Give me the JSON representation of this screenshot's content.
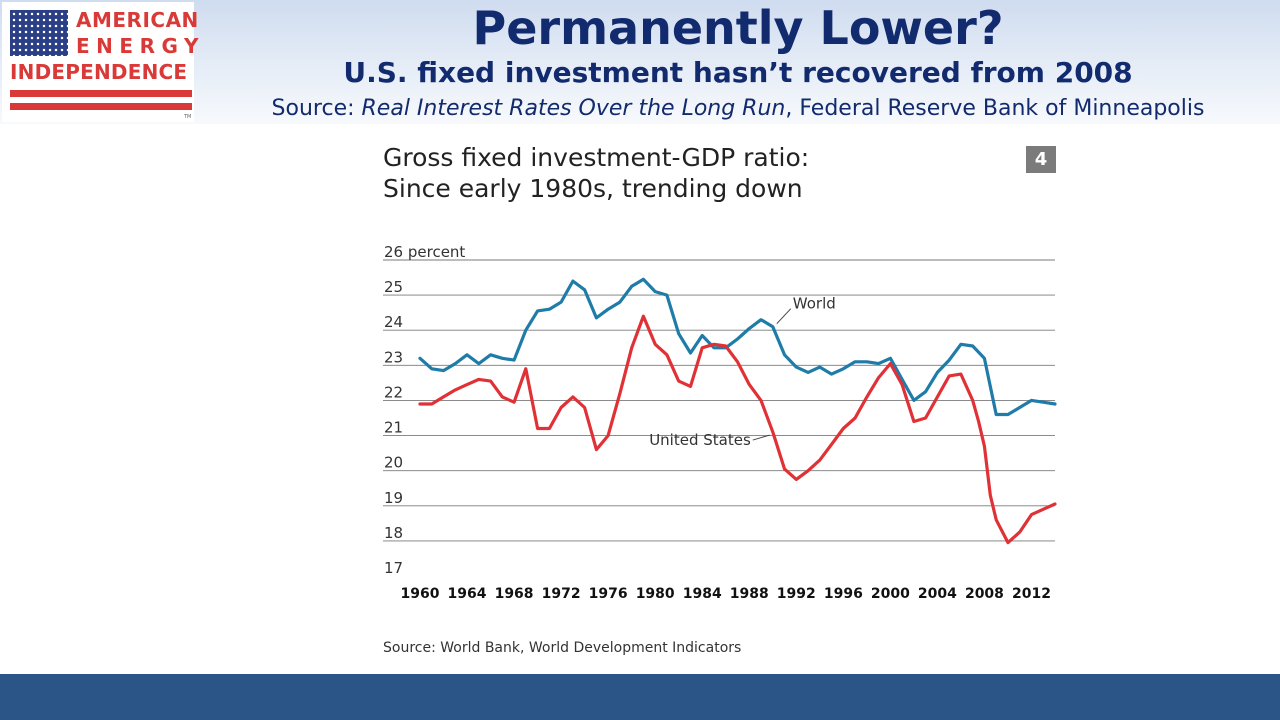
{
  "logo": {
    "line1": "AMERICAN",
    "line2": "ENERGY",
    "line3": "INDEPENDENCE",
    "tm": "TM"
  },
  "header": {
    "title": "Permanently Lower?",
    "subtitle": "U.S. fixed investment hasn’t recovered from 2008",
    "source_prefix": "Source: ",
    "source_title": "Real Interest Rates Over the Long Run",
    "source_suffix": ", Federal Reserve Bank of Minneapolis"
  },
  "colors": {
    "title_navy": "#122a6e",
    "logo_red": "#d93a37",
    "logo_blue": "#2b3f86",
    "world_line": "#1f7ca8",
    "us_line": "#e03236",
    "footer": "#2a5586",
    "badge": "#7b7b7b"
  },
  "chart_data": {
    "type": "line",
    "title_line1": "Gross fixed investment-GDP ratio:",
    "title_line2": "Since early 1980s, trending down",
    "badge": "4",
    "ylim": [
      17,
      26
    ],
    "y_ticks": [
      "26 percent",
      "25",
      "24",
      "23",
      "22",
      "21",
      "20",
      "19",
      "18",
      "17"
    ],
    "x_range": [
      1960,
      2014
    ],
    "x_ticks": [
      "1960",
      "1964",
      "1968",
      "1972",
      "1976",
      "1980",
      "1984",
      "1988",
      "1992",
      "1996",
      "2000",
      "2004",
      "2008",
      "2012"
    ],
    "grid": true,
    "series": [
      {
        "name": "World",
        "color": "#1f7ca8",
        "points": [
          [
            1960,
            23.2
          ],
          [
            1961,
            22.9
          ],
          [
            1962,
            22.85
          ],
          [
            1963,
            23.05
          ],
          [
            1964,
            23.3
          ],
          [
            1965,
            23.05
          ],
          [
            1966,
            23.3
          ],
          [
            1967,
            23.2
          ],
          [
            1968,
            23.15
          ],
          [
            1969,
            24.0
          ],
          [
            1970,
            24.55
          ],
          [
            1971,
            24.6
          ],
          [
            1972,
            24.8
          ],
          [
            1973,
            25.4
          ],
          [
            1974,
            25.15
          ],
          [
            1975,
            24.35
          ],
          [
            1976,
            24.6
          ],
          [
            1977,
            24.8
          ],
          [
            1978,
            25.25
          ],
          [
            1979,
            25.45
          ],
          [
            1980,
            25.1
          ],
          [
            1981,
            25.0
          ],
          [
            1982,
            23.9
          ],
          [
            1983,
            23.35
          ],
          [
            1984,
            23.85
          ],
          [
            1985,
            23.5
          ],
          [
            1986,
            23.5
          ],
          [
            1987,
            23.75
          ],
          [
            1988,
            24.05
          ],
          [
            1989,
            24.3
          ],
          [
            1990,
            24.1
          ],
          [
            1991,
            23.3
          ],
          [
            1992,
            22.95
          ],
          [
            1993,
            22.8
          ],
          [
            1994,
            22.95
          ],
          [
            1995,
            22.75
          ],
          [
            1996,
            22.9
          ],
          [
            1997,
            23.1
          ],
          [
            1998,
            23.1
          ],
          [
            1999,
            23.05
          ],
          [
            2000,
            23.2
          ],
          [
            2001,
            22.6
          ],
          [
            2002,
            22.0
          ],
          [
            2003,
            22.25
          ],
          [
            2004,
            22.8
          ],
          [
            2005,
            23.15
          ],
          [
            2006,
            23.6
          ],
          [
            2007,
            23.55
          ],
          [
            2008,
            23.2
          ],
          [
            2009,
            21.6
          ],
          [
            2010,
            21.6
          ],
          [
            2011,
            21.8
          ],
          [
            2012,
            22.0
          ],
          [
            2013,
            21.95
          ],
          [
            2014,
            21.9
          ]
        ]
      },
      {
        "name": "United States",
        "color": "#e03236",
        "points": [
          [
            1960,
            21.9
          ],
          [
            1961,
            21.9
          ],
          [
            1962,
            22.1
          ],
          [
            1963,
            22.3
          ],
          [
            1964,
            22.45
          ],
          [
            1965,
            22.6
          ],
          [
            1966,
            22.55
          ],
          [
            1967,
            22.1
          ],
          [
            1968,
            21.95
          ],
          [
            1969,
            22.9
          ],
          [
            1970,
            21.2
          ],
          [
            1971,
            21.2
          ],
          [
            1972,
            21.8
          ],
          [
            1973,
            22.1
          ],
          [
            1974,
            21.8
          ],
          [
            1975,
            20.6
          ],
          [
            1976,
            21.0
          ],
          [
            1977,
            22.2
          ],
          [
            1978,
            23.5
          ],
          [
            1979,
            24.4
          ],
          [
            1980,
            23.6
          ],
          [
            1981,
            23.3
          ],
          [
            1982,
            22.55
          ],
          [
            1983,
            22.4
          ],
          [
            1984,
            23.5
          ],
          [
            1985,
            23.6
          ],
          [
            1986,
            23.55
          ],
          [
            1987,
            23.1
          ],
          [
            1988,
            22.45
          ],
          [
            1989,
            22.0
          ],
          [
            1990,
            21.1
          ],
          [
            1991,
            20.05
          ],
          [
            1992,
            19.75
          ],
          [
            1993,
            20.0
          ],
          [
            1994,
            20.3
          ],
          [
            1995,
            20.75
          ],
          [
            1996,
            21.2
          ],
          [
            1997,
            21.5
          ],
          [
            1998,
            22.1
          ],
          [
            1999,
            22.65
          ],
          [
            2000,
            23.05
          ],
          [
            2001,
            22.45
          ],
          [
            2002,
            21.4
          ],
          [
            2003,
            21.5
          ],
          [
            2004,
            22.1
          ],
          [
            2005,
            22.7
          ],
          [
            2006,
            22.75
          ],
          [
            2007,
            22.0
          ],
          [
            2007.5,
            21.4
          ],
          [
            2008,
            20.7
          ],
          [
            2008.5,
            19.3
          ],
          [
            2009,
            18.6
          ],
          [
            2010,
            17.95
          ],
          [
            2011,
            18.25
          ],
          [
            2012,
            18.75
          ],
          [
            2013,
            18.9
          ],
          [
            2014,
            19.05
          ]
        ]
      }
    ],
    "annotations": [
      {
        "text": "World",
        "series": "World"
      },
      {
        "text": "United States",
        "series": "United States"
      }
    ],
    "source": "Source: World Bank, World Development Indicators"
  }
}
